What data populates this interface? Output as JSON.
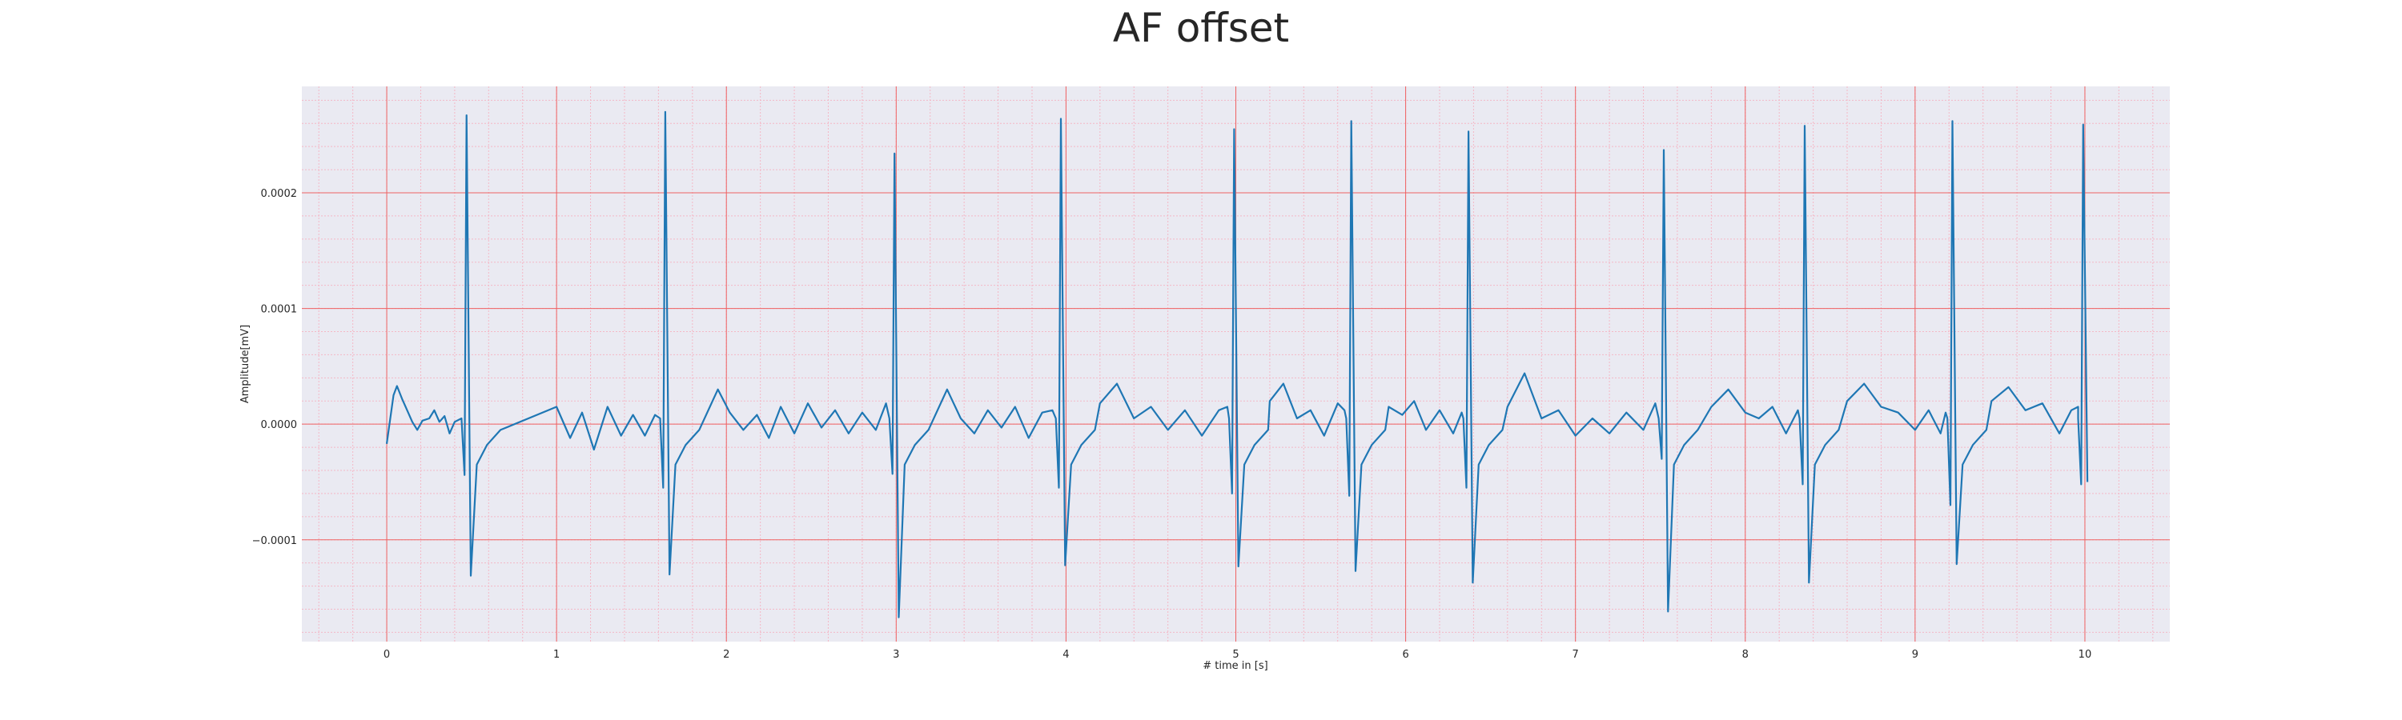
{
  "chart_data": {
    "type": "line",
    "title": "AF offset",
    "xlabel": "# time in [s]",
    "ylabel": "Amplitude[mV]",
    "xlim": [
      -0.5,
      10.5
    ],
    "ylim": [
      -0.000188,
      0.000292
    ],
    "x_ticks": [
      0,
      1,
      2,
      3,
      4,
      5,
      6,
      7,
      8,
      9,
      10
    ],
    "x_tick_labels": [
      "0",
      "1",
      "2",
      "3",
      "4",
      "5",
      "6",
      "7",
      "8",
      "9",
      "10"
    ],
    "y_ticks": [
      -0.0001,
      0.0,
      0.0001,
      0.0002
    ],
    "y_tick_labels": [
      "−0.0001",
      "0.0000",
      "0.0001",
      "0.0002"
    ],
    "grid": true,
    "minor_grid": true,
    "legend": "none",
    "series": [
      {
        "color": "#1f77b4",
        "beat_times": [
          0.47,
          1.64,
          2.99,
          3.97,
          4.99,
          5.68,
          6.37,
          7.52,
          8.35,
          9.22,
          9.99
        ],
        "r_peaks": [
          0.000267,
          0.00027,
          0.000234,
          0.000264,
          0.000255,
          0.000262,
          0.000253,
          0.000237,
          0.000258,
          0.000262,
          0.000259
        ],
        "s_troughs": [
          -0.000131,
          -0.00013,
          -0.000167,
          -0.000122,
          -0.000123,
          -0.000127,
          -0.000137,
          -0.000162,
          -0.000137,
          -0.000121,
          -5e-05
        ],
        "q_dips": [
          -4.4e-05,
          -5.5e-05,
          -4.3e-05,
          -5.5e-05,
          -6e-05,
          -6.2e-05,
          -5.5e-05,
          -3e-05,
          -5.2e-05,
          -7e-05,
          -5.2e-05
        ],
        "points": [
          [
            0.0,
            -1.7e-05
          ],
          [
            0.04,
            2.5e-05
          ],
          [
            0.06,
            3.3e-05
          ],
          [
            0.09,
            2.2e-05
          ],
          [
            0.12,
            1.2e-05
          ],
          [
            0.15,
            2e-06
          ],
          [
            0.18,
            -5e-06
          ],
          [
            0.21,
            3e-06
          ],
          [
            0.25,
            5e-06
          ],
          [
            0.28,
            1.2e-05
          ],
          [
            0.31,
            2e-06
          ],
          [
            0.34,
            7e-06
          ],
          [
            0.37,
            -8e-06
          ],
          [
            0.4,
            2e-06
          ],
          [
            1.0,
            1.5e-05
          ],
          [
            1.08,
            -1.2e-05
          ],
          [
            1.15,
            1e-05
          ],
          [
            1.22,
            -2.2e-05
          ],
          [
            1.3,
            1.5e-05
          ],
          [
            1.38,
            -1e-05
          ],
          [
            1.45,
            8e-06
          ],
          [
            1.52,
            -1e-05
          ],
          [
            1.58,
            8e-06
          ],
          [
            1.95,
            3e-05
          ],
          [
            2.02,
            1e-05
          ],
          [
            2.1,
            -5e-06
          ],
          [
            2.18,
            8e-06
          ],
          [
            2.25,
            -1.2e-05
          ],
          [
            2.32,
            1.5e-05
          ],
          [
            2.4,
            -8e-06
          ],
          [
            2.48,
            1.8e-05
          ],
          [
            2.56,
            -3e-06
          ],
          [
            2.64,
            1.2e-05
          ],
          [
            2.72,
            -8e-06
          ],
          [
            2.8,
            1e-05
          ],
          [
            2.88,
            -5e-06
          ],
          [
            2.94,
            1.8e-05
          ],
          [
            3.3,
            3e-05
          ],
          [
            3.38,
            5e-06
          ],
          [
            3.46,
            -8e-06
          ],
          [
            3.54,
            1.2e-05
          ],
          [
            3.62,
            -3e-06
          ],
          [
            3.7,
            1.5e-05
          ],
          [
            3.78,
            -1.2e-05
          ],
          [
            3.86,
            1e-05
          ],
          [
            3.92,
            1.2e-05
          ],
          [
            4.2,
            1.8e-05
          ],
          [
            4.3,
            3.5e-05
          ],
          [
            4.4,
            5e-06
          ],
          [
            4.5,
            1.5e-05
          ],
          [
            4.6,
            -5e-06
          ],
          [
            4.7,
            1.2e-05
          ],
          [
            4.8,
            -1e-05
          ],
          [
            4.9,
            1.2e-05
          ],
          [
            4.95,
            1.5e-05
          ],
          [
            5.2,
            2e-05
          ],
          [
            5.28,
            3.5e-05
          ],
          [
            5.36,
            5e-06
          ],
          [
            5.44,
            1.2e-05
          ],
          [
            5.52,
            -1e-05
          ],
          [
            5.6,
            1.8e-05
          ],
          [
            5.64,
            1.2e-05
          ],
          [
            5.9,
            1.5e-05
          ],
          [
            5.98,
            8e-06
          ],
          [
            6.05,
            2e-05
          ],
          [
            6.12,
            -5e-06
          ],
          [
            6.2,
            1.2e-05
          ],
          [
            6.28,
            -8e-06
          ],
          [
            6.33,
            1e-05
          ],
          [
            6.6,
            1.5e-05
          ],
          [
            6.7,
            4.4e-05
          ],
          [
            6.8,
            5e-06
          ],
          [
            6.9,
            1.2e-05
          ],
          [
            7.0,
            -1e-05
          ],
          [
            7.1,
            5e-06
          ],
          [
            7.2,
            -8e-06
          ],
          [
            7.3,
            1e-05
          ],
          [
            7.4,
            -5e-06
          ],
          [
            7.47,
            1.8e-05
          ],
          [
            7.8,
            1.5e-05
          ],
          [
            7.9,
            3e-05
          ],
          [
            8.0,
            1e-05
          ],
          [
            8.08,
            5e-06
          ],
          [
            8.16,
            1.5e-05
          ],
          [
            8.24,
            -8e-06
          ],
          [
            8.31,
            1.2e-05
          ],
          [
            8.6,
            2e-05
          ],
          [
            8.7,
            3.5e-05
          ],
          [
            8.8,
            1.5e-05
          ],
          [
            8.9,
            1e-05
          ],
          [
            9.0,
            -5e-06
          ],
          [
            9.08,
            1.2e-05
          ],
          [
            9.15,
            -8e-06
          ],
          [
            9.18,
            1e-05
          ],
          [
            9.45,
            2e-05
          ],
          [
            9.55,
            3.2e-05
          ],
          [
            9.65,
            1.2e-05
          ],
          [
            9.75,
            1.8e-05
          ],
          [
            9.85,
            -8e-06
          ],
          [
            9.92,
            1.2e-05
          ],
          [
            9.96,
            1.5e-05
          ]
        ]
      }
    ]
  }
}
